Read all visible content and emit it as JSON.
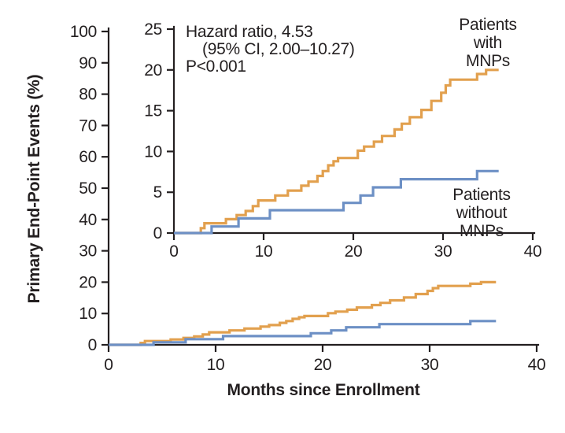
{
  "figure": {
    "background": "#ffffff",
    "ink_color": "#231f20"
  },
  "chart_data": {
    "type": "line",
    "subtype": "kaplan-meier-step",
    "title": "",
    "xlabel": "Months since Enrollment",
    "ylabel": "Primary End-Point Events (%)",
    "annotation": {
      "line1": "Hazard ratio, 4.53",
      "line2": "(95% CI, 2.00–10.27)",
      "line3": "P<0.001"
    },
    "legend": {
      "with_mnps": "Patients with\nMNPs",
      "without_mnps": "Patients without\nMNPs",
      "position": "inside-right"
    },
    "main_axes": {
      "xlim": [
        0,
        40
      ],
      "ylim": [
        0,
        100
      ],
      "x_ticks": [
        0,
        10,
        20,
        30,
        40
      ],
      "y_ticks": [
        0,
        10,
        20,
        30,
        40,
        50,
        60,
        70,
        80,
        90,
        100
      ],
      "grid": false
    },
    "inset_axes": {
      "xlim": [
        0,
        40
      ],
      "ylim": [
        0,
        25
      ],
      "x_ticks": [
        0,
        10,
        20,
        30,
        40
      ],
      "y_ticks": [
        0,
        5,
        10,
        15,
        20,
        25
      ],
      "grid": false
    },
    "series": [
      {
        "name": "Patients with MNPs",
        "color": "#e2a04e",
        "start": [
          0,
          0
        ],
        "end_month": 36.2,
        "steps": [
          [
            3.0,
            0.6
          ],
          [
            3.4,
            1.2
          ],
          [
            5.8,
            1.7
          ],
          [
            7.0,
            2.2
          ],
          [
            8.0,
            2.7
          ],
          [
            8.8,
            3.3
          ],
          [
            9.4,
            4.0
          ],
          [
            11.3,
            4.6
          ],
          [
            12.7,
            5.2
          ],
          [
            14.2,
            5.8
          ],
          [
            15.0,
            6.3
          ],
          [
            16.0,
            7.0
          ],
          [
            16.6,
            7.6
          ],
          [
            17.2,
            8.3
          ],
          [
            17.8,
            8.8
          ],
          [
            18.3,
            9.2
          ],
          [
            20.5,
            10.1
          ],
          [
            21.2,
            10.6
          ],
          [
            22.3,
            11.2
          ],
          [
            23.2,
            11.9
          ],
          [
            24.6,
            12.7
          ],
          [
            25.4,
            13.4
          ],
          [
            26.3,
            14.2
          ],
          [
            27.6,
            15.1
          ],
          [
            28.7,
            16.2
          ],
          [
            29.8,
            17.2
          ],
          [
            30.3,
            18.1
          ],
          [
            30.8,
            18.8
          ],
          [
            33.8,
            19.5
          ],
          [
            34.8,
            20.0
          ]
        ]
      },
      {
        "name": "Patients without MNPs",
        "color": "#6d90c5",
        "start": [
          0,
          0
        ],
        "end_month": 36.2,
        "steps": [
          [
            4.2,
            0.8
          ],
          [
            7.2,
            1.8
          ],
          [
            10.7,
            2.8
          ],
          [
            18.9,
            3.7
          ],
          [
            20.8,
            4.6
          ],
          [
            22.2,
            5.6
          ],
          [
            25.3,
            6.6
          ],
          [
            33.8,
            7.6
          ]
        ]
      }
    ]
  }
}
